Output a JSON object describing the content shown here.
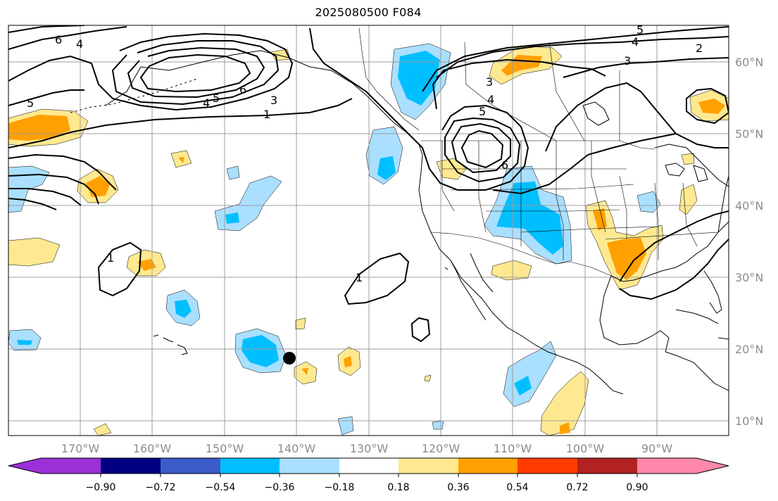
{
  "title": "2025080500 F084",
  "map": {
    "lon_labels": [
      "170°W",
      "160°W",
      "150°W",
      "140°W",
      "130°W",
      "120°W",
      "110°W",
      "100°W",
      "90°W"
    ],
    "lat_labels": [
      "60°N",
      "50°N",
      "40°N",
      "30°N",
      "20°N",
      "10°N"
    ],
    "contour_labels": [
      "6",
      "4",
      "5",
      "4",
      "5",
      "6",
      "3",
      "1",
      "5",
      "4",
      "3",
      "2",
      "3",
      "4",
      "5",
      "6",
      "1",
      "1"
    ],
    "colors": {
      "land_outline": "#000000",
      "grid": "#9e9e9e",
      "contour": "#000000",
      "marker": "#000000"
    }
  },
  "colorbar": {
    "tick_labels": [
      "−0.90",
      "−0.72",
      "−0.54",
      "−0.36",
      "−0.18",
      "0.18",
      "0.36",
      "0.54",
      "0.72",
      "0.90"
    ],
    "colors": [
      "#9b30d9",
      "#000080",
      "#3a5bc8",
      "#00bfff",
      "#aadfff",
      "#ffffff",
      "#ffe990",
      "#ffa000",
      "#ff3c00",
      "#b22222",
      "#ff88aa"
    ]
  }
}
